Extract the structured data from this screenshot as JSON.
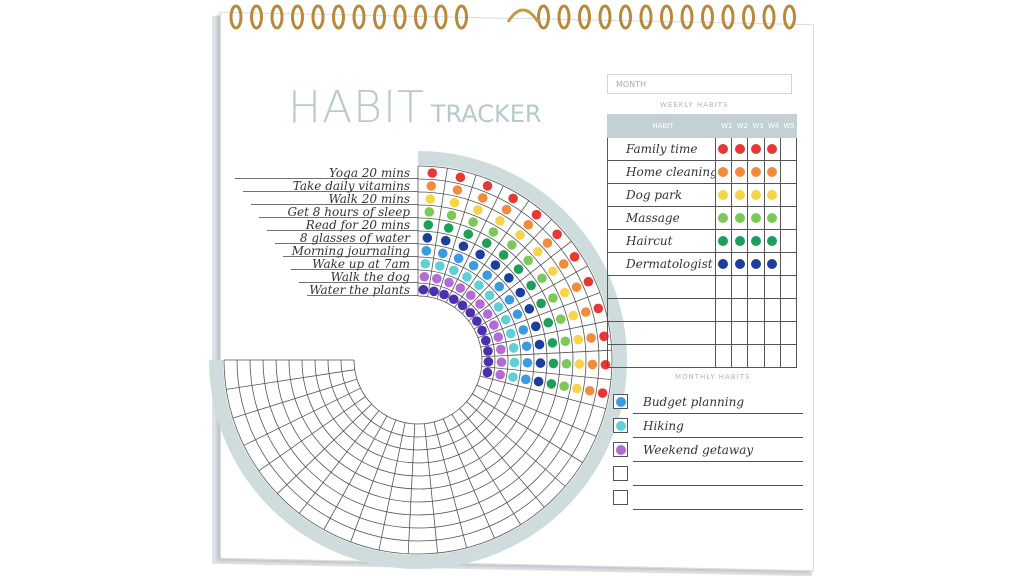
{
  "title": {
    "main": "HABIT",
    "sub": "TRACKER"
  },
  "daily_habits": [
    {
      "label": "Yoga 20 mins",
      "color": "#e53935",
      "days_done": 12
    },
    {
      "label": "Take daily vitamins",
      "color": "#f28c3c",
      "days_done": 12
    },
    {
      "label": "Walk 20 mins",
      "color": "#f7d44a",
      "days_done": 12
    },
    {
      "label": "Get 8 hours of sleep",
      "color": "#7cc95a",
      "days_done": 12
    },
    {
      "label": "Read for 20 mins",
      "color": "#1f9e5a",
      "days_done": 12
    },
    {
      "label": "8 glasses of water",
      "color": "#1b3f9c",
      "days_done": 12
    },
    {
      "label": "Morning journaling",
      "color": "#3a9be0",
      "days_done": 12
    },
    {
      "label": "Wake up at 7am",
      "color": "#5fd0d8",
      "days_done": 12
    },
    {
      "label": "Walk the dog",
      "color": "#b36bd6",
      "days_done": 12
    },
    {
      "label": "Water the plants",
      "color": "#4a2fb0",
      "days_done": 12
    }
  ],
  "month_label": "MONTH",
  "weekly": {
    "heading": "WEEKLY HABITS",
    "header": "HABIT",
    "weeks": [
      "W1",
      "W2",
      "W3",
      "W4",
      "W5"
    ],
    "rows": [
      {
        "label": "Family time",
        "color": "#e53935",
        "weeks_done": 4
      },
      {
        "label": "Home cleaning",
        "color": "#f28c3c",
        "weeks_done": 4
      },
      {
        "label": "Dog park",
        "color": "#f7d44a",
        "weeks_done": 4
      },
      {
        "label": "Massage",
        "color": "#7cc95a",
        "weeks_done": 4
      },
      {
        "label": "Haircut",
        "color": "#1f9e5a",
        "weeks_done": 4
      },
      {
        "label": "Dermatologist",
        "color": "#1b3f9c",
        "weeks_done": 4
      },
      {
        "label": "",
        "color": "",
        "weeks_done": 0
      },
      {
        "label": "",
        "color": "",
        "weeks_done": 0
      },
      {
        "label": "",
        "color": "",
        "weeks_done": 0
      },
      {
        "label": "",
        "color": "",
        "weeks_done": 0
      }
    ]
  },
  "monthly": {
    "heading": "MONTHLY HABITS",
    "items": [
      {
        "label": "Budget planning",
        "color": "#3a9be0"
      },
      {
        "label": "Hiking",
        "color": "#5fd0d8"
      },
      {
        "label": "Weekend getaway",
        "color": "#b36bd6"
      },
      {
        "label": "",
        "color": ""
      },
      {
        "label": "",
        "color": ""
      }
    ]
  }
}
